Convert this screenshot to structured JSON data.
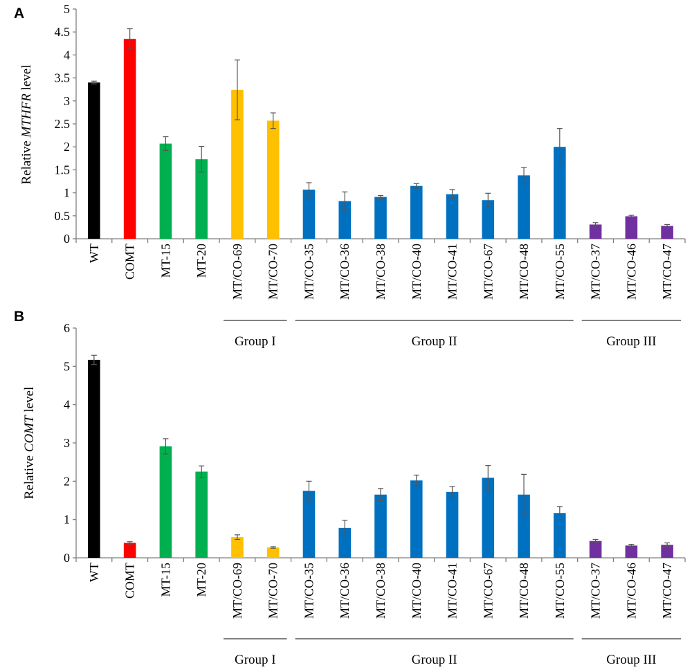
{
  "categories": [
    "WT",
    "COMT",
    "MT-15",
    "MT-20",
    "MT/CO-69",
    "MT/CO-70",
    "MT/CO-35",
    "MT/CO-36",
    "MT/CO-38",
    "MT/CO-40",
    "MT/CO-41",
    "MT/CO-67",
    "MT/CO-48",
    "MT/CO-55",
    "MT/CO-37",
    "MT/CO-46",
    "MT/CO-47"
  ],
  "bar_colors": [
    "#000000",
    "#ff0000",
    "#00b050",
    "#00b050",
    "#ffc000",
    "#ffc000",
    "#0070c0",
    "#0070c0",
    "#0070c0",
    "#0070c0",
    "#0070c0",
    "#0070c0",
    "#0070c0",
    "#0070c0",
    "#7030a0",
    "#7030a0",
    "#7030a0"
  ],
  "groups": [
    {
      "label": "Group I",
      "first_index": 4,
      "last_index": 5
    },
    {
      "label": "Group II",
      "first_index": 6,
      "last_index": 13
    },
    {
      "label": "Group III",
      "first_index": 14,
      "last_index": 16
    }
  ],
  "chart_data": [
    {
      "type": "bar",
      "panel": "A",
      "ylabel_prefix": "Relative ",
      "ylabel_gene": "MTHFR",
      "ylabel_suffix": " level",
      "ylim": [
        0,
        5
      ],
      "yticks": [
        "0",
        "0.5",
        "1",
        "1.5",
        "2",
        "2.5",
        "3",
        "3.5",
        "4",
        "4.5",
        "5"
      ],
      "ytick_values": [
        0,
        0.5,
        1,
        1.5,
        2,
        2.5,
        3,
        3.5,
        4,
        4.5,
        5
      ],
      "values": [
        3.4,
        4.35,
        2.07,
        1.73,
        3.24,
        2.57,
        1.07,
        0.82,
        0.91,
        1.15,
        0.97,
        0.84,
        1.38,
        2.0,
        0.31,
        0.49,
        0.28
      ],
      "errors": [
        0.03,
        0.22,
        0.15,
        0.28,
        0.65,
        0.17,
        0.15,
        0.2,
        0.03,
        0.05,
        0.1,
        0.15,
        0.17,
        0.4,
        0.04,
        0.02,
        0.03
      ]
    },
    {
      "type": "bar",
      "panel": "B",
      "ylabel_prefix": "Relative ",
      "ylabel_gene": "COMT",
      "ylabel_suffix": " level",
      "ylim": [
        0,
        6
      ],
      "yticks": [
        "0",
        "1",
        "2",
        "3",
        "4",
        "5",
        "6"
      ],
      "ytick_values": [
        0,
        1,
        2,
        3,
        4,
        5,
        6
      ],
      "values": [
        5.17,
        0.39,
        2.91,
        2.25,
        0.54,
        0.27,
        1.75,
        0.78,
        1.65,
        2.02,
        1.72,
        2.09,
        1.65,
        1.17,
        0.44,
        0.32,
        0.34
      ],
      "errors": [
        0.12,
        0.03,
        0.2,
        0.15,
        0.06,
        0.02,
        0.25,
        0.2,
        0.16,
        0.14,
        0.14,
        0.32,
        0.53,
        0.17,
        0.04,
        0.03,
        0.05
      ]
    }
  ]
}
